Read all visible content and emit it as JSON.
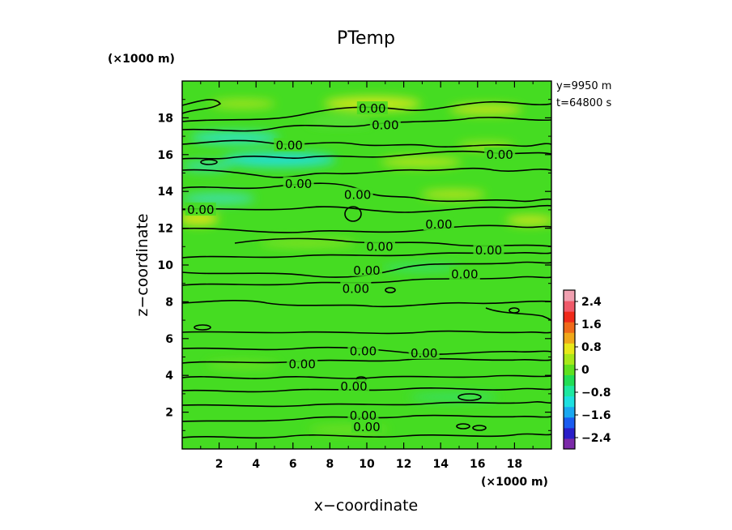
{
  "chart_data": {
    "type": "heatmap",
    "title": "PTemp",
    "xlabel": "x−coordinate",
    "ylabel": "z−coordinate",
    "x_unit": "(×1000 m)",
    "y_unit": "(×1000 m)",
    "info": [
      "y=9950  m",
      "t=64800  s"
    ],
    "xlim": [
      0,
      20
    ],
    "ylim": [
      0,
      20
    ],
    "xticks": [
      "2",
      "4",
      "6",
      "8",
      "10",
      "12",
      "14",
      "16",
      "18"
    ],
    "yticks": [
      "2",
      "4",
      "6",
      "8",
      "10",
      "12",
      "14",
      "16",
      "18"
    ],
    "colorbar": {
      "ticks": [
        "2.4",
        "1.6",
        "0.8",
        "0",
        "−0.8",
        "−1.6",
        "−2.4"
      ],
      "range": [
        -2.8,
        2.8
      ],
      "colors": [
        "#7b2aa8",
        "#2a1ec8",
        "#1a5cf0",
        "#1aa8f0",
        "#1ee0e0",
        "#1ee8a0",
        "#22dd55",
        "#5fe020",
        "#a8e81a",
        "#e8e81a",
        "#f0a81a",
        "#f06a1a",
        "#f02a1a",
        "#f05a6a",
        "#f0a0b0"
      ]
    },
    "contour_level": "0.00",
    "contour_labels": [
      {
        "x": 10.3,
        "z": 18.5
      },
      {
        "x": 11.0,
        "z": 17.6
      },
      {
        "x": 5.8,
        "z": 16.5
      },
      {
        "x": 17.2,
        "z": 16.0
      },
      {
        "x": 6.3,
        "z": 14.4
      },
      {
        "x": 9.5,
        "z": 13.8
      },
      {
        "x": 1.0,
        "z": 13.0
      },
      {
        "x": 13.9,
        "z": 12.2
      },
      {
        "x": 10.7,
        "z": 11.0
      },
      {
        "x": 16.6,
        "z": 10.8
      },
      {
        "x": 10.0,
        "z": 9.7
      },
      {
        "x": 15.3,
        "z": 9.5
      },
      {
        "x": 9.4,
        "z": 8.7
      },
      {
        "x": 9.8,
        "z": 5.3
      },
      {
        "x": 13.1,
        "z": 5.2
      },
      {
        "x": 6.5,
        "z": 4.6
      },
      {
        "x": 9.3,
        "z": 3.4
      },
      {
        "x": 9.8,
        "z": 1.8
      },
      {
        "x": 10.0,
        "z": 1.2
      }
    ]
  }
}
